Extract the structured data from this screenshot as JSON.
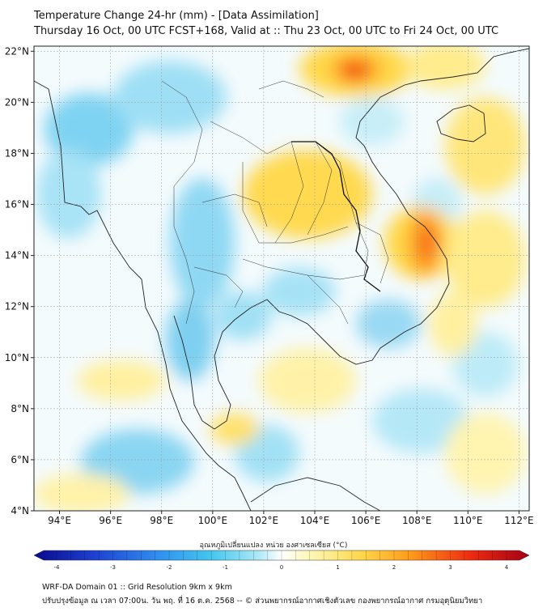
{
  "header": {
    "title": "Temperature Change 24-hr (mm) - [Data Assimilation]",
    "subtitle": "Thursday 16 Oct, 00 UTC FCST+168, Valid at :: Thu 23 Oct, 00 UTC to Fri 24 Oct, 00 UTC"
  },
  "map": {
    "lat_labels": [
      "22°N",
      "20°N",
      "18°N",
      "16°N",
      "14°N",
      "12°N",
      "10°N",
      "8°N",
      "6°N",
      "4°N"
    ],
    "lat_values": [
      22,
      20,
      18,
      16,
      14,
      12,
      10,
      8,
      6,
      4
    ],
    "lon_labels": [
      "94°E",
      "96°E",
      "98°E",
      "100°E",
      "102°E",
      "104°E",
      "106°E",
      "108°E",
      "110°E",
      "112°E"
    ],
    "lon_values": [
      94,
      96,
      98,
      100,
      102,
      104,
      106,
      108,
      110,
      112
    ],
    "lat_range": [
      4,
      22.2
    ],
    "lon_range": [
      93,
      112.4
    ]
  },
  "colorbar": {
    "label": "อุณหภูมิเปลี่ยนแปลง หน่วย องศาเซลเซียส (°C)",
    "tick_labels": [
      "-4",
      "-3",
      "-2",
      "-1",
      "0",
      "1",
      "2",
      "3",
      "4"
    ],
    "range": [
      -4,
      4
    ],
    "colors": [
      "#0a0a8c",
      "#1e3fd0",
      "#2f8ff0",
      "#45c8ef",
      "#a9e7f6",
      "#ffffff",
      "#fff7b2",
      "#ffd84a",
      "#ff9a1a",
      "#ee2c10",
      "#a30016"
    ]
  },
  "footer": {
    "line1": "WRF-DA Domain 01 :: Grid Resolution 9km x 9km",
    "line2": "ปรับปรุงข้อมูล ณ เวลา 07:00น. วัน พฤ. ที่ 16 ต.ค. 2568 -- © ส่วนพยากรณ์อากาศเชิงตัวเลข กองพยากรณ์อากาศ กรมอุตุนิยมวิทยา"
  }
}
